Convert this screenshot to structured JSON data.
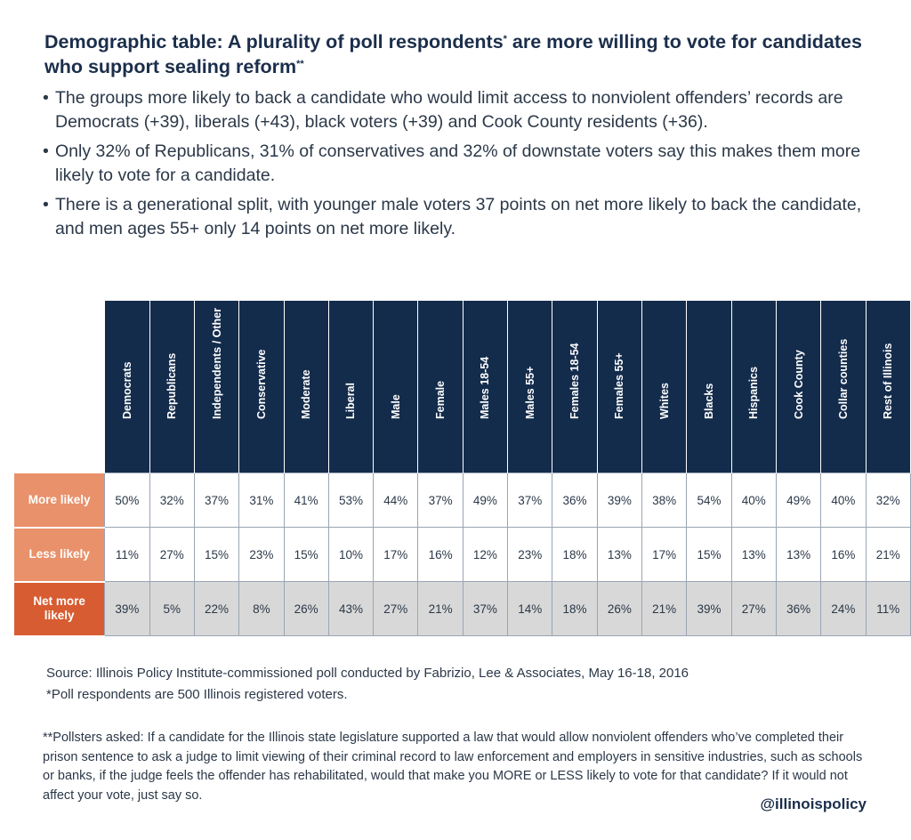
{
  "title": {
    "part1": "Demographic table: A plurality of poll respondents",
    "mark1": "*",
    "part2": " are more willing to vote for candidates who support sealing reform",
    "mark2": "**"
  },
  "bullets": [
    "The groups more likely to back a candidate who would limit access to nonviolent offenders’ records are Democrats (+39), liberals (+43), black voters (+39) and Cook County residents (+36).",
    "Only 32% of Republicans, 31% of conservatives and 32% of downstate voters say this makes them more likely to vote for a candidate.",
    "There is a generational split, with younger male voters 37 points on net more likely to back the candidate, and men ages 55+ only 14 points on net more likely."
  ],
  "bullet_symbol": "•",
  "chart_data": {
    "type": "table",
    "columns": [
      "Democrats",
      "Republicans",
      "Independents / Other",
      "Conservative",
      "Moderate",
      "Liberal",
      "Male",
      "Female",
      "Males 18-54",
      "Males 55+",
      "Females 18-54",
      "Females 55+",
      "Whites",
      "Blacks",
      "Hispanics",
      "Cook County",
      "Collar counties",
      "Rest of Illinois"
    ],
    "rows": [
      {
        "label": "More likely",
        "values": [
          "50%",
          "32%",
          "37%",
          "31%",
          "41%",
          "53%",
          "44%",
          "37%",
          "49%",
          "37%",
          "36%",
          "39%",
          "38%",
          "54%",
          "40%",
          "49%",
          "40%",
          "32%"
        ]
      },
      {
        "label": "Less likely",
        "values": [
          "11%",
          "27%",
          "15%",
          "23%",
          "15%",
          "10%",
          "17%",
          "16%",
          "12%",
          "23%",
          "18%",
          "13%",
          "17%",
          "15%",
          "13%",
          "13%",
          "16%",
          "21%"
        ]
      },
      {
        "label": "Net more likely",
        "values": [
          "39%",
          "5%",
          "22%",
          "8%",
          "26%",
          "43%",
          "27%",
          "21%",
          "37%",
          "14%",
          "18%",
          "26%",
          "21%",
          "39%",
          "27%",
          "36%",
          "24%",
          "11%"
        ]
      }
    ],
    "colors": {
      "header": "#142c4c",
      "row_head_light": "#e8916a",
      "row_head_dark": "#d85c31",
      "net_row": "#d8d8d8"
    }
  },
  "source": "Source: Illinois Policy Institute-commissioned poll conducted by Fabrizio, Lee & Associates, May 16-18, 2016",
  "footnote1": "*Poll respondents are 500 Illinois registered voters.",
  "footnote2": "**Pollsters asked: If a candidate for the Illinois state legislature supported a law that would allow nonviolent offenders who’ve completed their prison sentence to ask a judge to limit viewing of their criminal record to law enforcement and employers in sensitive industries, such as schools or banks, if the judge feels the offender has rehabilitated, would that make you MORE or LESS likely to vote for that candidate? If it would not affect your vote, just say so.",
  "handle": "@illinoispolicy"
}
